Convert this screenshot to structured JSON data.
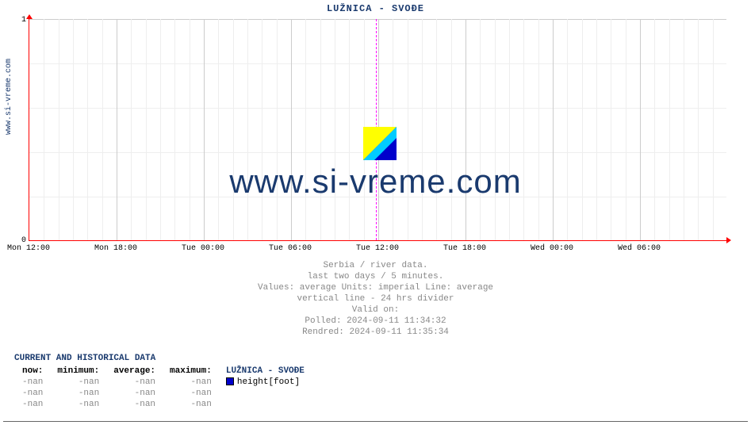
{
  "sidebar_label": "www.si-vreme.com",
  "chart": {
    "title": "LUŽNICA -  SVOĐE",
    "type": "line",
    "background_color": "#ffffff",
    "axis_color": "#ff0000",
    "grid_minor_color": "#eeeeee",
    "grid_major_color": "#cccccc",
    "divider_color": "#ff00ff",
    "ylim": [
      0,
      1
    ],
    "yticks": [
      {
        "pos": 0.0,
        "label": "0"
      },
      {
        "pos": 1.0,
        "label": "1"
      }
    ],
    "xticks": [
      {
        "pos": 0.0,
        "label": "Mon 12:00"
      },
      {
        "pos": 0.125,
        "label": "Mon 18:00"
      },
      {
        "pos": 0.25,
        "label": "Tue 00:00"
      },
      {
        "pos": 0.375,
        "label": "Tue 06:00"
      },
      {
        "pos": 0.5,
        "label": "Tue 12:00"
      },
      {
        "pos": 0.625,
        "label": "Tue 18:00"
      },
      {
        "pos": 0.75,
        "label": "Wed 00:00"
      },
      {
        "pos": 0.875,
        "label": "Wed 06:00"
      }
    ],
    "minor_x_count": 48,
    "minor_y_count": 5,
    "divider_24h_pos": 0.497,
    "watermark_text": "www.si-vreme.com",
    "watermark_color": "#1a3a6e",
    "watermark_fontsize": 42,
    "logo_colors": {
      "tri1": "#ffff00",
      "tri2": "#00ccff",
      "tri3": "#0000cc"
    }
  },
  "caption": {
    "line1": "Serbia / river data.",
    "line2": "last two days / 5 minutes.",
    "line3": "Values: average  Units: imperial  Line: average",
    "line4": "vertical line - 24 hrs  divider",
    "line5": "Valid on:",
    "line6": "Polled: 2024-09-11 11:34:32",
    "line7": "Rendred: 2024-09-11 11:35:34"
  },
  "table": {
    "header": "CURRENT AND HISTORICAL DATA",
    "columns": [
      "now:",
      "minimum:",
      "average:",
      "maximum:"
    ],
    "series_label": "LUŽNICA -  SVOĐE",
    "legend_label": "height[foot]",
    "legend_color": "#0000cc",
    "rows": [
      [
        "-nan",
        "-nan",
        "-nan",
        "-nan"
      ],
      [
        "-nan",
        "-nan",
        "-nan",
        "-nan"
      ],
      [
        "-nan",
        "-nan",
        "-nan",
        "-nan"
      ]
    ]
  }
}
